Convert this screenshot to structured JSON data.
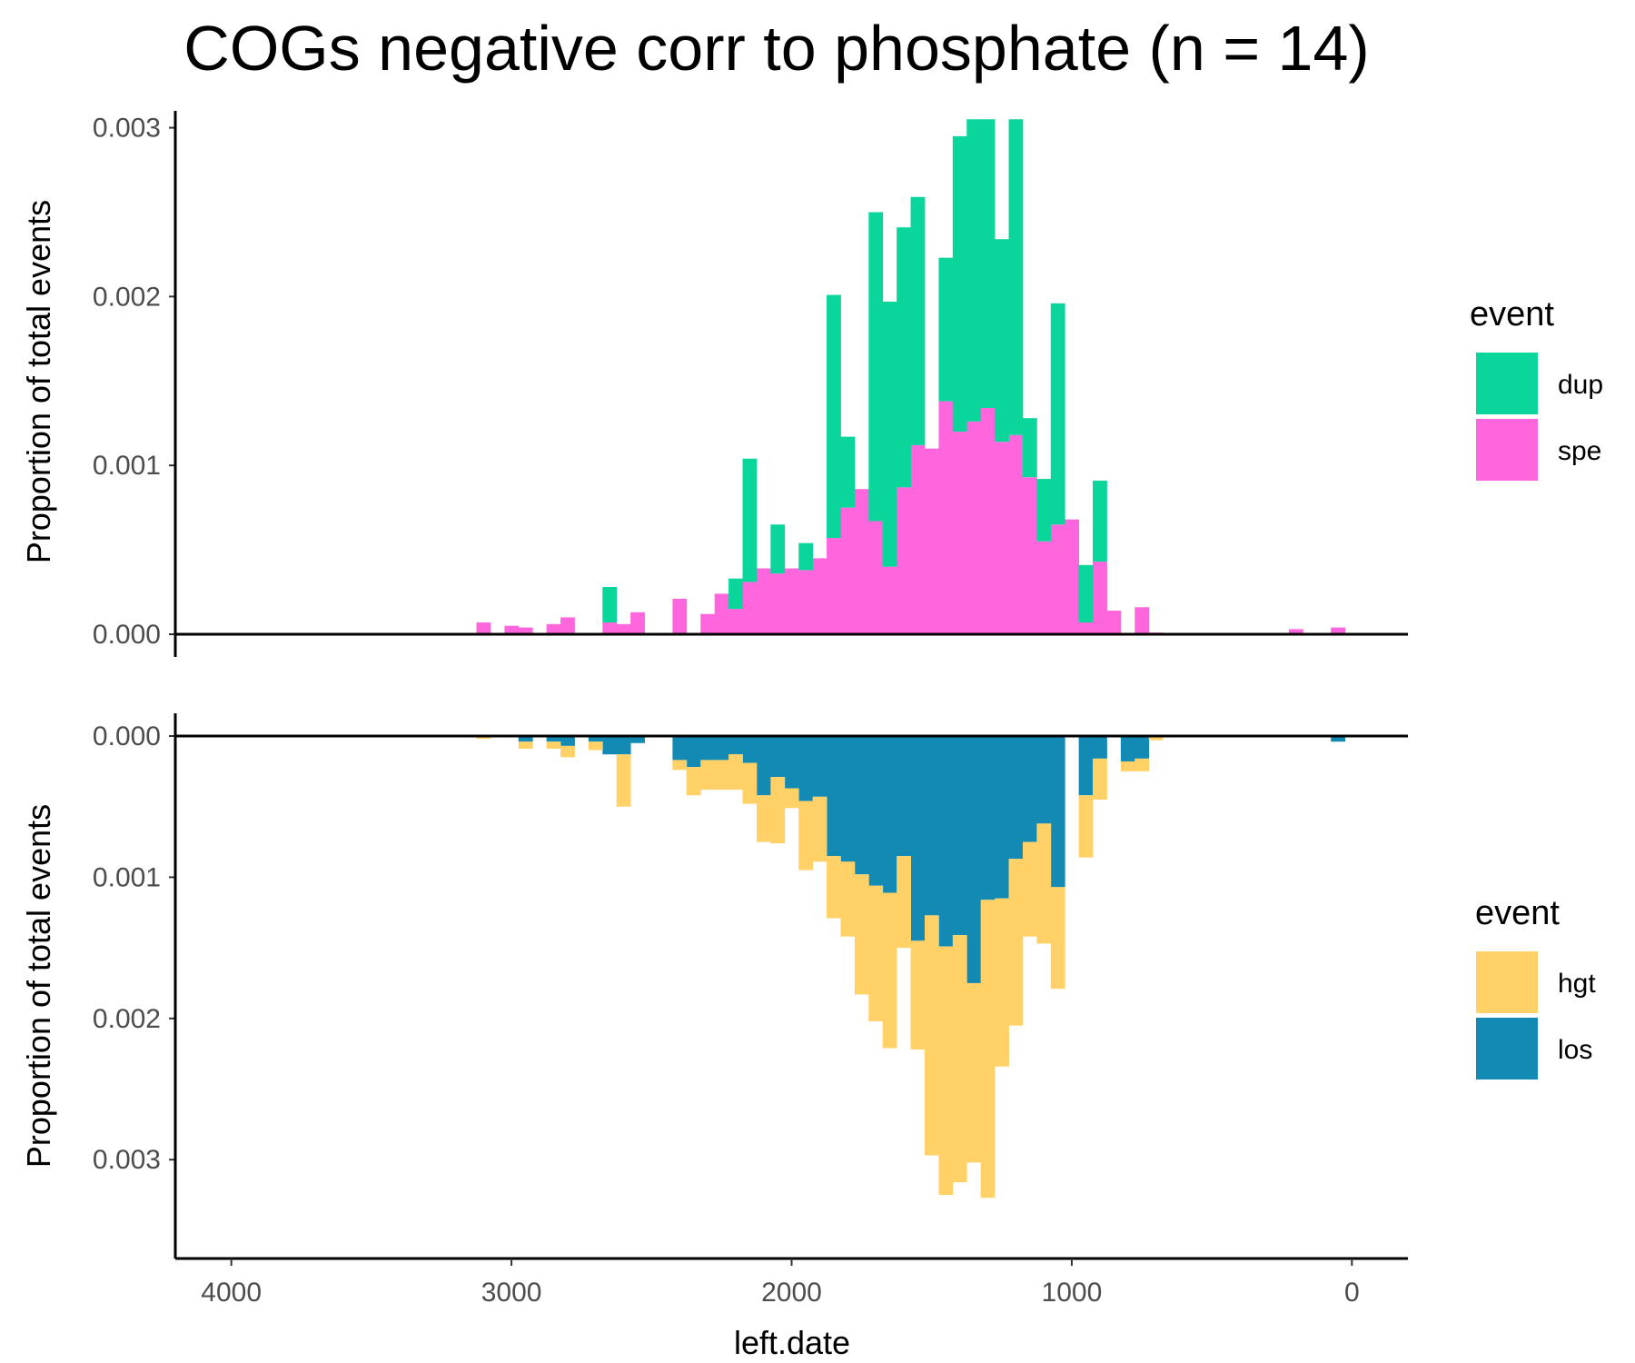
{
  "chart_data": {
    "type": "bar",
    "title": "COGs negative corr to phosphate (n = 14)",
    "xlabel": "left.date",
    "x_reversed": true,
    "xlim": [
      4200,
      -200
    ],
    "x_ticks": [
      "4000",
      "3000",
      "2000",
      "1000",
      "0"
    ],
    "x_tick_values": [
      4000,
      3000,
      2000,
      1000,
      0
    ],
    "bin_width": 50,
    "grid": false,
    "stacked": true,
    "panels": [
      {
        "ylabel": "Proportion of total events",
        "ylim": [
          0,
          0.0031
        ],
        "y_ticks": [
          "0.000",
          "0.001",
          "0.002",
          "0.003"
        ],
        "y_tick_values": [
          0,
          0.001,
          0.002,
          0.003
        ],
        "direction": "up",
        "legend_title": "event",
        "legend_position": "right",
        "series": [
          {
            "name": "spe",
            "color": "#FF66DD",
            "x": [
              3100,
              3000,
              2950,
              2850,
              2800,
              2650,
              2600,
              2550,
              2400,
              2300,
              2250,
              2200,
              2150,
              2100,
              2050,
              2000,
              1950,
              1900,
              1850,
              1800,
              1750,
              1700,
              1650,
              1600,
              1550,
              1500,
              1450,
              1400,
              1350,
              1300,
              1250,
              1200,
              1150,
              1100,
              1050,
              1000,
              950,
              900,
              850,
              750,
              700,
              200,
              50
            ],
            "values": [
              7e-05,
              5e-05,
              4e-05,
              6e-05,
              0.0001,
              7e-05,
              6e-05,
              0.00013,
              0.00021,
              0.00012,
              0.00024,
              0.00015,
              0.00031,
              0.00039,
              0.00036,
              0.00039,
              0.00038,
              0.00045,
              0.00057,
              0.00075,
              0.00086,
              0.00067,
              0.0004,
              0.00087,
              0.00112,
              0.0011,
              0.00138,
              0.0012,
              0.00126,
              0.00134,
              0.00114,
              0.00118,
              0.00093,
              0.00055,
              0.00065,
              0.00068,
              7e-05,
              0.00043,
              0.00014,
              0.00016,
              1e-05,
              3e-05,
              4e-05
            ]
          },
          {
            "name": "dup",
            "color": "#0AD59B",
            "x": [
              2650,
              2200,
              2150,
              2050,
              1950,
              1850,
              1800,
              1700,
              1650,
              1600,
              1550,
              1450,
              1400,
              1350,
              1300,
              1250,
              1200,
              1150,
              1100,
              1050,
              950,
              900
            ],
            "values": [
              0.00021,
              0.00018,
              0.00073,
              0.00029,
              0.00016,
              0.00144,
              0.00042,
              0.00183,
              0.00157,
              0.00154,
              0.00147,
              0.00085,
              0.00175,
              0.00179,
              0.00171,
              0.0012,
              0.00187,
              0.00035,
              0.00037,
              0.00131,
              0.00034,
              0.00048
            ]
          }
        ]
      },
      {
        "ylabel": "Proportion of total events",
        "ylim": [
          0,
          0.0037
        ],
        "y_ticks": [
          "0.000",
          "0.001",
          "0.002",
          "0.003"
        ],
        "y_tick_values": [
          0,
          0.001,
          0.002,
          0.003
        ],
        "direction": "down",
        "legend_title": "event",
        "legend_position": "right",
        "series": [
          {
            "name": "los",
            "color": "#128AB3",
            "x": [
              2950,
              2850,
              2800,
              2700,
              2650,
              2600,
              2550,
              2400,
              2350,
              2300,
              2250,
              2200,
              2150,
              2100,
              2050,
              2000,
              1950,
              1900,
              1850,
              1800,
              1750,
              1700,
              1650,
              1600,
              1550,
              1500,
              1450,
              1400,
              1350,
              1300,
              1250,
              1200,
              1150,
              1100,
              1050,
              950,
              900,
              800,
              750,
              50
            ],
            "values": [
              4e-05,
              4e-05,
              7e-05,
              4e-05,
              0.00013,
              0.00013,
              5e-05,
              0.00017,
              0.00022,
              0.00017,
              0.00017,
              0.00013,
              0.00019,
              0.00042,
              0.00029,
              0.00037,
              0.00046,
              0.00043,
              0.00085,
              0.00089,
              0.00098,
              0.00106,
              0.00111,
              0.00085,
              0.00145,
              0.00127,
              0.00149,
              0.00141,
              0.00175,
              0.00116,
              0.00115,
              0.00087,
              0.00075,
              0.00062,
              0.00107,
              0.00042,
              0.00016,
              0.00018,
              0.00016,
              4e-05
            ]
          },
          {
            "name": "hgt",
            "color": "#FFD166",
            "x": [
              3100,
              2950,
              2850,
              2800,
              2700,
              2600,
              2400,
              2350,
              2300,
              2250,
              2200,
              2150,
              2100,
              2050,
              2000,
              1950,
              1900,
              1850,
              1800,
              1750,
              1700,
              1650,
              1600,
              1550,
              1500,
              1450,
              1400,
              1350,
              1300,
              1250,
              1200,
              1150,
              1100,
              1050,
              950,
              900,
              800,
              750,
              700
            ],
            "values": [
              2e-05,
              5e-05,
              5e-05,
              8e-05,
              6e-05,
              0.00037,
              7e-05,
              0.0002,
              0.00021,
              0.00021,
              0.00025,
              0.00029,
              0.00033,
              0.00047,
              0.00014,
              0.00049,
              0.00046,
              0.00044,
              0.00053,
              0.00085,
              0.00096,
              0.0011,
              0.00065,
              0.00077,
              0.0017,
              0.00176,
              0.00175,
              0.00127,
              0.00211,
              0.00119,
              0.00118,
              0.00067,
              0.00085,
              0.00072,
              0.00044,
              0.00029,
              7e-05,
              9e-05,
              3e-05
            ]
          }
        ]
      }
    ]
  }
}
